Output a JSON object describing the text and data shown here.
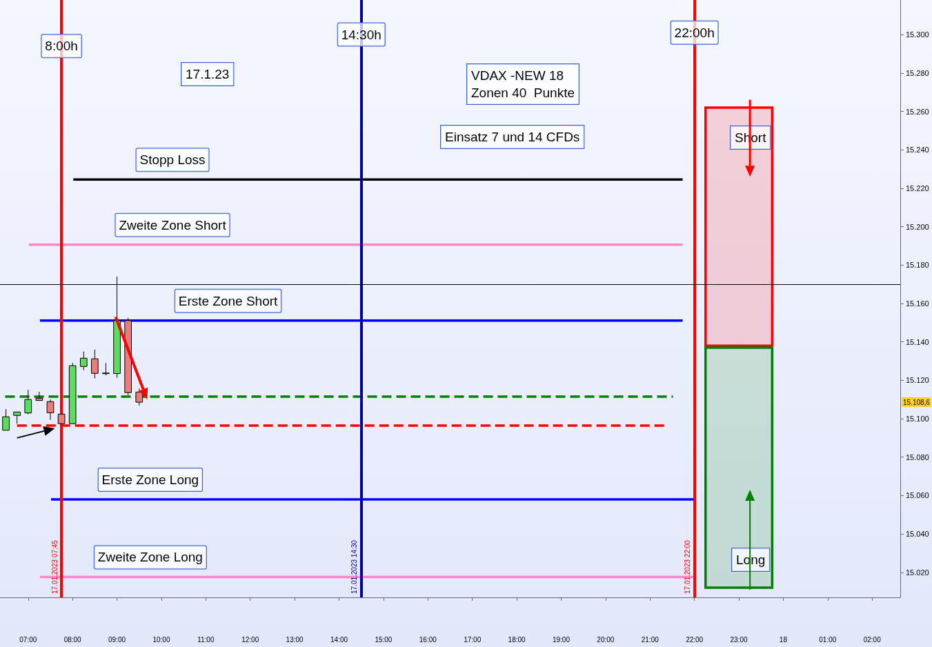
{
  "chart_data": {
    "type": "candlestick",
    "x": [
      "2023-01-17T06:30",
      "2023-01-17T06:45",
      "2023-01-17T07:00",
      "2023-01-17T07:15",
      "2023-01-17T07:30",
      "2023-01-17T07:45",
      "2023-01-17T08:00",
      "2023-01-17T08:15",
      "2023-01-17T08:30",
      "2023-01-17T08:45",
      "2023-01-17T09:00",
      "2023-01-17T09:15",
      "2023-01-17T09:30"
    ],
    "ohlc": [
      [
        15094,
        15105,
        15094,
        15101
      ],
      [
        15101.7,
        15103.5,
        15097.4,
        15103.5
      ],
      [
        15103,
        15115,
        15102.3,
        15110
      ],
      [
        15110.7,
        15114,
        15109.5,
        15109.5
      ],
      [
        15108.9,
        15110,
        15099.4,
        15103.1
      ],
      [
        15102.4,
        15102.4,
        15097.4,
        15097.4
      ],
      [
        15097.4,
        15129,
        15097.4,
        15127.6
      ],
      [
        15127.2,
        15135,
        15125.3,
        15131.5
      ],
      [
        15131.2,
        15136,
        15121,
        15123.6
      ],
      [
        15123.8,
        15129,
        15122.6,
        15123.8
      ],
      [
        15123.5,
        15174,
        15121.3,
        15151.1
      ],
      [
        15151.1,
        15152.5,
        15112.3,
        15113.6
      ],
      [
        15113.9,
        15115.7,
        15106.9,
        15108.6
      ]
    ],
    "series": [
      {
        "type": "line",
        "color": "#000000",
        "x": [
          "2023-01-17T08:01",
          "2023-01-17T21:44"
        ],
        "values": [
          15224.5,
          15224.5
        ]
      },
      {
        "type": "line",
        "color": "#ff88c8",
        "x": [
          "2023-01-17T07:01",
          "2023-01-17T21:44"
        ],
        "values": [
          15190.6,
          15190.6
        ]
      },
      {
        "type": "line",
        "color": "#0000ff",
        "x": [
          "2023-01-17T07:16",
          "2023-01-17T21:44"
        ],
        "values": [
          15151.1,
          15151.1
        ]
      },
      {
        "type": "line",
        "color": "#008000",
        "x": [
          "2023-01-17T06:29",
          "2023-01-17T21:31"
        ],
        "values": [
          15111.5,
          15111.5
        ],
        "line_style": "dashed"
      },
      {
        "type": "line",
        "color": "#ff0000",
        "x": [
          "2023-01-17T06:45",
          "2023-01-17T21:23"
        ],
        "values": [
          15096.4,
          15096.4
        ],
        "line_style": "dashed"
      },
      {
        "type": "line",
        "color": "#0000ff",
        "x": [
          "2023-01-17T07:31",
          "2023-01-17T21:59"
        ],
        "values": [
          15058,
          15058
        ]
      },
      {
        "type": "line",
        "color": "#ff88c8",
        "x": [
          "2023-01-17T07:16",
          "2023-01-17T21:59"
        ],
        "values": [
          15017.6,
          15017.6
        ]
      },
      {
        "type": "bar",
        "color": "#ff0000",
        "x": [
          "2023-01-17T23:00"
        ],
        "values": [
          124
        ],
        "base": [
          15138
        ]
      },
      {
        "type": "bar",
        "color": "#008000",
        "x": [
          "2023-01-17T23:00"
        ],
        "values": [
          125
        ],
        "base": [
          15012
        ]
      }
    ],
    "ref_lines": [
      {
        "axis": "x",
        "value": "2023-01-17T07:45",
        "label": "17.01.2023 07:45",
        "color": "#ff0000"
      },
      {
        "axis": "x",
        "value": "2023-01-17T14:30",
        "label": "17.01.2023 14:30",
        "color": "#0000a0"
      },
      {
        "axis": "x",
        "value": "2023-01-17T22:00",
        "label": "17.01.2023 22:00",
        "color": "#ff0000"
      },
      {
        "axis": "y",
        "value": 15170,
        "color": "#000000"
      }
    ],
    "annotations": [
      {
        "text": "8:00h",
        "x": "2023-01-17T07:45",
        "y": 15294
      },
      {
        "text": "14:30h",
        "x": "2023-01-17T14:30",
        "y": 15300
      },
      {
        "text": "22:00h",
        "x": "2023-01-17T22:00",
        "y": 15301
      },
      "17.1.23",
      "VDAX -NEW 18\nZonen 40  Punkte",
      "Einsatz 7 und 14 CFDs",
      {
        "text": "Stopp Loss",
        "x": "2023-01-17T10:15",
        "y": 15224.5
      },
      {
        "text": "Zweite Zone Short",
        "x": "2023-01-17T10:15",
        "y": 15190.6
      },
      {
        "text": "Erste Zone Short",
        "x": "2023-01-17T11:30",
        "y": 15151.1
      },
      {
        "text": "Erste Zone Long",
        "x": "2023-01-17T09:45",
        "y": 15058
      },
      {
        "text": "Zweite Zone Long",
        "x": "2023-01-17T09:45",
        "y": 15017.6
      },
      "Short",
      "Long",
      {
        "text": "15.108,6",
        "y": 15108.6
      }
    ],
    "xlim": [
      "2023-01-17T06:22",
      "2023-01-18T02:38"
    ],
    "xticks": [
      {
        "value": "2023-01-17T07:00",
        "label": "07:00"
      },
      {
        "value": "2023-01-17T08:00",
        "label": "08:00"
      },
      {
        "value": "2023-01-17T09:00",
        "label": "09:00"
      },
      {
        "value": "2023-01-17T10:00",
        "label": "10:00"
      },
      {
        "value": "2023-01-17T11:00",
        "label": "11:00"
      },
      {
        "value": "2023-01-17T12:00",
        "label": "12:00"
      },
      {
        "value": "2023-01-17T13:00",
        "label": "13:00"
      },
      {
        "value": "2023-01-17T14:00",
        "label": "14:00"
      },
      {
        "value": "2023-01-17T15:00",
        "label": "15:00"
      },
      {
        "value": "2023-01-17T16:00",
        "label": "16:00"
      },
      {
        "value": "2023-01-17T17:00",
        "label": "17:00"
      },
      {
        "value": "2023-01-17T18:00",
        "label": "18:00"
      },
      {
        "value": "2023-01-17T19:00",
        "label": "19:00"
      },
      {
        "value": "2023-01-17T20:00",
        "label": "20:00"
      },
      {
        "value": "2023-01-17T21:00",
        "label": "21:00"
      },
      {
        "value": "2023-01-17T22:00",
        "label": "22:00"
      },
      {
        "value": "2023-01-17T23:00",
        "label": "23:00"
      },
      {
        "value": "2023-01-18T00:00",
        "label": "18"
      },
      {
        "value": "2023-01-18T01:00",
        "label": "01:00"
      },
      {
        "value": "2023-01-18T02:00",
        "label": "02:00"
      }
    ],
    "ylim": [
      15007,
      15318
    ],
    "yticks": [
      {
        "value": 15020,
        "label": "15.020"
      },
      {
        "value": 15040,
        "label": "15.040"
      },
      {
        "value": 15060,
        "label": "15.060"
      },
      {
        "value": 15080,
        "label": "15.080"
      },
      {
        "value": 15100,
        "label": "15.100"
      },
      {
        "value": 15120,
        "label": "15.120"
      },
      {
        "value": 15140,
        "label": "15.140"
      },
      {
        "value": 15160,
        "label": "15.160"
      },
      {
        "value": 15180,
        "label": "15.180"
      },
      {
        "value": 15200,
        "label": "15.200"
      },
      {
        "value": 15220,
        "label": "15.220"
      },
      {
        "value": 15240,
        "label": "15.240"
      },
      {
        "value": 15260,
        "label": "15.260"
      },
      {
        "value": 15280,
        "label": "15.280"
      },
      {
        "value": 15300,
        "label": "15.300"
      }
    ]
  }
}
